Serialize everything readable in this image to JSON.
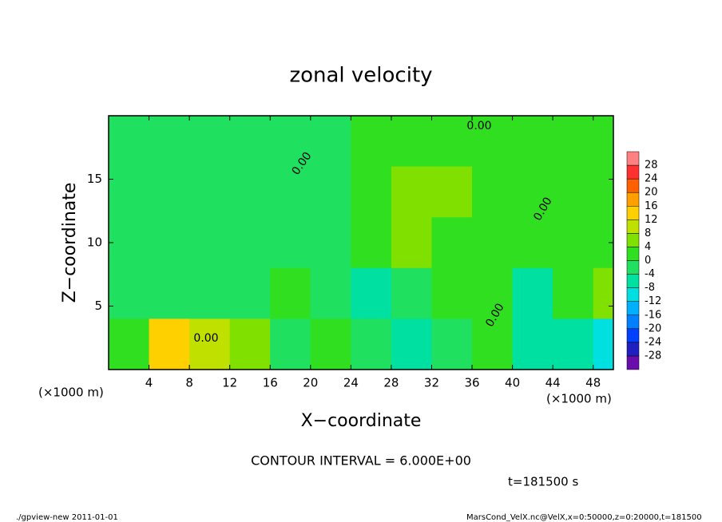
{
  "chart_data": {
    "type": "heatmap",
    "title": "zonal velocity",
    "x_label": "X−coordinate",
    "y_label": "Z−coordinate",
    "x_unit_left": "(×1000 m)",
    "x_unit_right": "(×1000 m)",
    "contour_interval": "CONTOUR INTERVAL = 6.000E+00",
    "time_label": "t=181500 s",
    "footer_left": "./gpview-new  2011-01-01",
    "footer_right": "MarsCond_VelX.nc@VelX,x=0:50000,z=0:20000,t=181500",
    "contour_labels": [
      "0.00",
      "0.00",
      "0.00",
      "0.00",
      "0.00"
    ],
    "x": [
      2,
      6,
      10,
      14,
      18,
      22,
      26,
      30,
      34,
      38,
      42,
      46,
      50
    ],
    "z": [
      18,
      14,
      10,
      6,
      2
    ],
    "values": [
      [
        -1,
        -1,
        -1,
        -1,
        -1,
        -1,
        1,
        2,
        2,
        1,
        1,
        0,
        1
      ],
      [
        -3,
        -3,
        -3,
        -4,
        -3,
        -2,
        2,
        6,
        4,
        3,
        2,
        1,
        2
      ],
      [
        -3,
        -3,
        -3,
        -3,
        -3,
        -1,
        2,
        6,
        3,
        2,
        2,
        2,
        3
      ],
      [
        -2,
        -4,
        -3,
        -2,
        1,
        -2,
        -6,
        -2,
        2,
        1,
        -5,
        3,
        6
      ],
      [
        3,
        12,
        10,
        4,
        -4,
        3,
        -3,
        -6,
        -2,
        2,
        -6,
        -8,
        -10
      ]
    ],
    "xlim": [
      0,
      50
    ],
    "ylim": [
      0,
      20
    ],
    "xticks": [
      4,
      8,
      12,
      16,
      20,
      24,
      28,
      32,
      36,
      40,
      44,
      48
    ],
    "yticks": [
      5,
      10,
      15
    ],
    "levels": [
      -28,
      -24,
      -20,
      -16,
      -12,
      -8,
      -4,
      0,
      4,
      8,
      12,
      16,
      20,
      24,
      28
    ],
    "colors": [
      "#6a0dad",
      "#2020c0",
      "#0040ff",
      "#0080ff",
      "#00b0ff",
      "#00e0e0",
      "#00e0a0",
      "#20e060",
      "#30e020",
      "#80e000",
      "#c0e000",
      "#ffd000",
      "#ffa000",
      "#ff6000",
      "#ff3030",
      "#ff8080"
    ]
  }
}
